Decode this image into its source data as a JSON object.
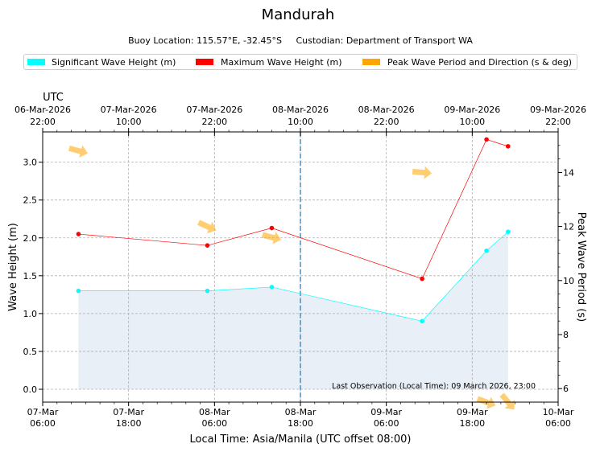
{
  "title": "Mandurah",
  "subtitle": {
    "buoy_location": "Buoy Location: 115.57°E, -32.45°S",
    "custodian": "Custodian: Department of Transport WA"
  },
  "legend": [
    {
      "label": "Significant Wave Height (m)",
      "color": "#00ffff"
    },
    {
      "label": "Maximum Wave Height (m)",
      "color": "#ff0000"
    },
    {
      "label": "Peak Wave Period and Direction (s & deg)",
      "color": "#ffa500"
    }
  ],
  "chart_data": {
    "type": "line",
    "title": "Mandurah",
    "xlabel": "Local Time: Asia/Manila (UTC offset 08:00)",
    "ylabel": "Wave Height (m)",
    "y2label": "Peak Wave Period (s)",
    "utc_label": "UTC",
    "x_unit": "hours since 07-Mar 06:00 local",
    "xlim": [
      0,
      72
    ],
    "ylim": [
      -0.17,
      3.4
    ],
    "y2lim": [
      5.5,
      15.5
    ],
    "bottom_ticks": [
      {
        "x": 0,
        "line1": "07-Mar",
        "line2": "06:00"
      },
      {
        "x": 12,
        "line1": "07-Mar",
        "line2": "18:00"
      },
      {
        "x": 24,
        "line1": "08-Mar",
        "line2": "06:00"
      },
      {
        "x": 36,
        "line1": "08-Mar",
        "line2": "18:00"
      },
      {
        "x": 48,
        "line1": "09-Mar",
        "line2": "06:00"
      },
      {
        "x": 60,
        "line1": "09-Mar",
        "line2": "18:00"
      },
      {
        "x": 72,
        "line1": "10-Mar",
        "line2": "06:00"
      }
    ],
    "top_ticks": [
      {
        "x": 0,
        "line1": "06-Mar-2026",
        "line2": "22:00"
      },
      {
        "x": 12,
        "line1": "07-Mar-2026",
        "line2": "10:00"
      },
      {
        "x": 24,
        "line1": "07-Mar-2026",
        "line2": "22:00"
      },
      {
        "x": 36,
        "line1": "08-Mar-2026",
        "line2": "10:00"
      },
      {
        "x": 48,
        "line1": "08-Mar-2026",
        "line2": "22:00"
      },
      {
        "x": 60,
        "line1": "09-Mar-2026",
        "line2": "10:00"
      },
      {
        "x": 72,
        "line1": "09-Mar-2026",
        "line2": "22:00"
      }
    ],
    "y_ticks": [
      0.0,
      0.5,
      1.0,
      1.5,
      2.0,
      2.5,
      3.0
    ],
    "y_tick_labels": [
      "0.0",
      "0.5",
      "1.0",
      "1.5",
      "2.0",
      "2.5",
      "3.0"
    ],
    "y2_ticks": [
      6,
      8,
      10,
      12,
      14
    ],
    "y2_tick_labels": [
      "6",
      "8",
      "10",
      "12",
      "14"
    ],
    "series": [
      {
        "name": "Significant Wave Height (m)",
        "color": "#00ffff",
        "x": [
          5,
          23,
          32,
          53,
          62,
          65
        ],
        "values": [
          1.3,
          1.3,
          1.35,
          0.9,
          1.83,
          2.08
        ]
      },
      {
        "name": "Maximum Wave Height (m)",
        "color": "#ff0000",
        "x": [
          5,
          23,
          32,
          53,
          62,
          65
        ],
        "values": [
          2.05,
          1.9,
          2.13,
          1.46,
          3.3,
          3.21
        ]
      }
    ],
    "peak_period": {
      "name": "Peak Wave Period and Direction (s & deg)",
      "color": "#ffa500",
      "x": [
        5,
        23,
        32,
        53,
        62,
        65
      ],
      "period_s": [
        14.8,
        12.0,
        11.6,
        14.0,
        5.5,
        5.5
      ],
      "direction_deg": [
        255,
        245,
        255,
        265,
        250,
        220
      ]
    },
    "vline_x": 36,
    "fill_color": "#e8eff7",
    "annotation": "Last Observation (Local Time): 09 March 2026, 23:00",
    "grid": true
  }
}
